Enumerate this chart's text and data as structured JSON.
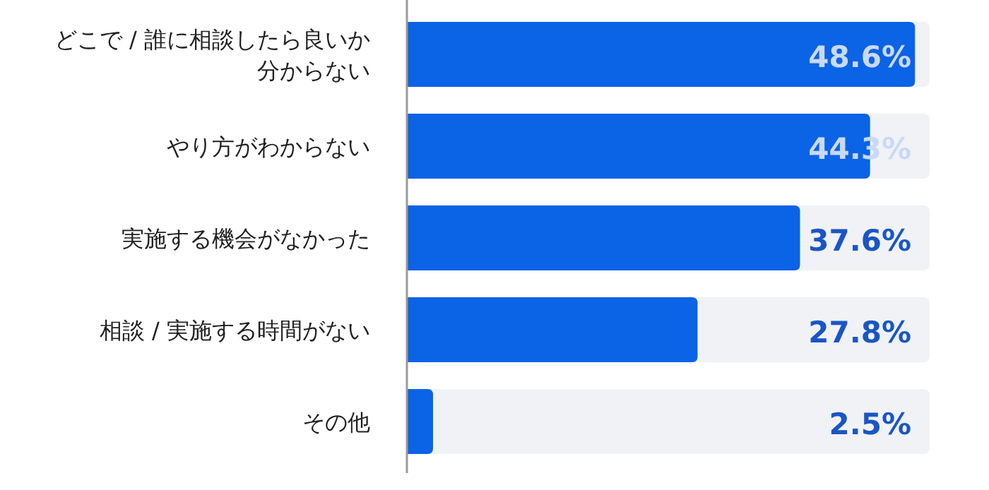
{
  "chart_data": {
    "type": "bar",
    "orientation": "horizontal",
    "categories": [
      "どこで / 誰に相談したら良いか分からない",
      "やり方がわからない",
      "実施する機会がなかった",
      "相談 / 実施する時間がない",
      "その他"
    ],
    "values": [
      48.6,
      44.3,
      37.6,
      27.8,
      2.5
    ],
    "value_labels": [
      "48.6%",
      "44.3%",
      "37.6%",
      "27.8%",
      "2.5%"
    ],
    "color": "#0b63e5",
    "xlim": [
      0,
      50
    ]
  }
}
